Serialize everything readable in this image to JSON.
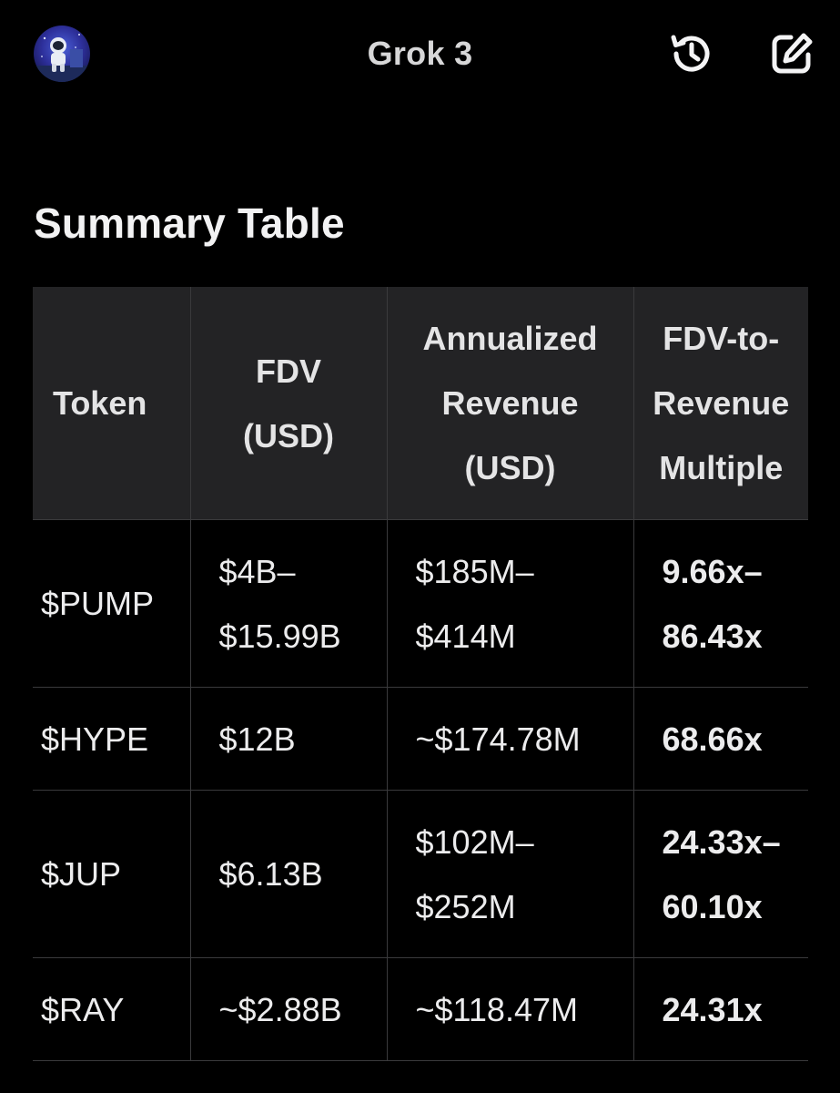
{
  "header": {
    "title": "Grok 3",
    "avatar_icon": "astronaut-avatar-icon",
    "history_icon": "history-icon",
    "edit_icon": "edit-icon"
  },
  "content": {
    "heading": "Summary Table",
    "table": {
      "headers": [
        [
          "Token"
        ],
        [
          "FDV",
          "(USD)"
        ],
        [
          "Annualized",
          "Revenue",
          "(USD)"
        ],
        [
          "FDV-to-",
          "Revenue",
          "Multiple"
        ]
      ],
      "rows": [
        {
          "token": "$PUMP",
          "fdv": [
            "$4B–",
            "$15.99B"
          ],
          "revenue": [
            "$185M–",
            "$414M"
          ],
          "multiple": [
            "9.66x–",
            "86.43x"
          ]
        },
        {
          "token": "$HYPE",
          "fdv": [
            "$12B"
          ],
          "revenue": [
            "~$174.78M"
          ],
          "multiple": [
            "68.66x"
          ]
        },
        {
          "token": "$JUP",
          "fdv": [
            "$6.13B"
          ],
          "revenue": [
            "$102M–",
            "$252M"
          ],
          "multiple": [
            "24.33x–",
            "60.10x"
          ]
        },
        {
          "token": "$RAY",
          "fdv": [
            "~$2.88B"
          ],
          "revenue": [
            "~$118.47M"
          ],
          "multiple": [
            "24.31x"
          ]
        }
      ]
    }
  },
  "colors": {
    "background": "#000000",
    "header_row": "#232325",
    "grid_line": "#3a3a3c",
    "text": "#ececed"
  }
}
